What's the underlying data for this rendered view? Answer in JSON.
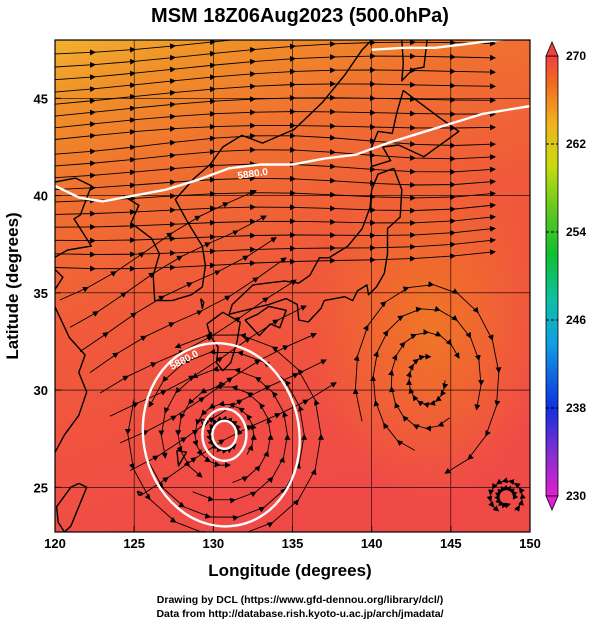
{
  "title": "MSM 18Z06Aug2023 (500.0hPa)",
  "xlabel": "Longitude (degrees)",
  "ylabel": "Latitude  (degrees)",
  "credits": [
    "Drawing by DCL (https://www.gfd-dennou.org/library/dcl/)",
    "Data from http://database.rish.kyoto-u.ac.jp/arch/jmadata/"
  ],
  "map": {
    "lon_range": [
      120,
      150
    ],
    "lat_range": [
      22.7,
      48
    ],
    "lon_ticks": [
      120,
      125,
      130,
      135,
      140,
      145,
      150
    ],
    "lat_ticks": [
      25,
      30,
      35,
      40,
      45
    ],
    "lon_tick_labels": [
      "120",
      "125",
      "130",
      "135",
      "140",
      "145",
      "150"
    ],
    "lat_tick_labels": [
      "25",
      "30",
      "35",
      "40",
      "45"
    ],
    "colorbar": {
      "min": 230,
      "max": 270,
      "ticks": [
        230,
        238,
        246,
        254,
        262,
        270
      ],
      "tick_labels": [
        "230",
        "238",
        "246",
        "254",
        "262",
        "270"
      ],
      "colors": [
        "#e020d0",
        "#8030d0",
        "#1030e0",
        "#10a0e0",
        "#10c0a0",
        "#10c030",
        "#60c820",
        "#c8dc10",
        "#f0b020",
        "#f07020",
        "#f04040"
      ]
    },
    "contour_labels": [
      "5880.0",
      "5880.0"
    ],
    "colors": {
      "warm_core": "#f25050",
      "orange": "#f07a2a",
      "yellow_orange": "#f2a830",
      "coast": "#000000",
      "contour": "#ffffff"
    }
  }
}
